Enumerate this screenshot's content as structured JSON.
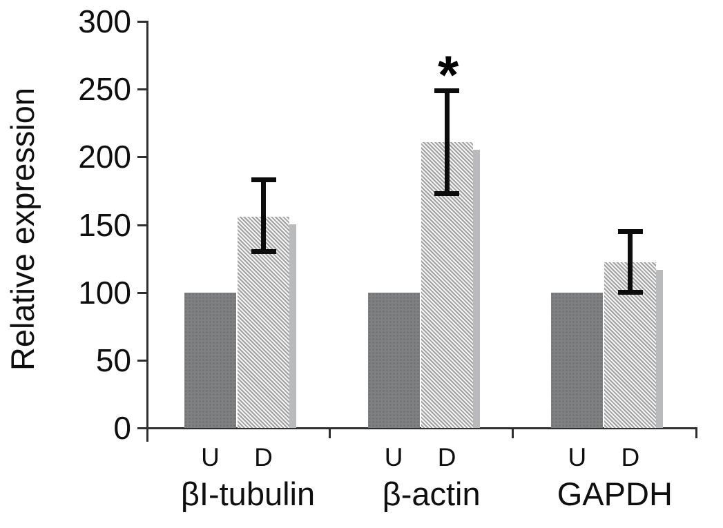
{
  "chart_data": {
    "type": "bar",
    "title": "",
    "ylabel": "Relative expression",
    "xlabel": "",
    "ylim": [
      0,
      300
    ],
    "yticks": [
      0,
      50,
      100,
      150,
      200,
      250,
      300
    ],
    "grid": false,
    "legend": "none",
    "categories": [
      "βI-tubulin",
      "β-actin",
      "GAPDH"
    ],
    "bar_letters": [
      "U",
      "D"
    ],
    "series": [
      {
        "name": "U",
        "style": "solid-dark-gray",
        "values": [
          100,
          100,
          100
        ]
      },
      {
        "name": "D",
        "style": "diagonal-hatch-with-shadow",
        "values": [
          156,
          211,
          122
        ],
        "error_low": [
          130,
          173,
          100
        ],
        "error_high": [
          183,
          249,
          145
        ],
        "significance": [
          "",
          "*",
          ""
        ]
      }
    ],
    "colors": {
      "u_bar": "#7e8082",
      "d_hatch_light": "#f5f5f5",
      "d_hatch_dark": "#a1a1a1",
      "d_shadow": "#b9babc",
      "axis": "#2e2e2e",
      "error_bar": "#0c0c0c",
      "text": "#111111",
      "background": "#ffffff"
    }
  }
}
